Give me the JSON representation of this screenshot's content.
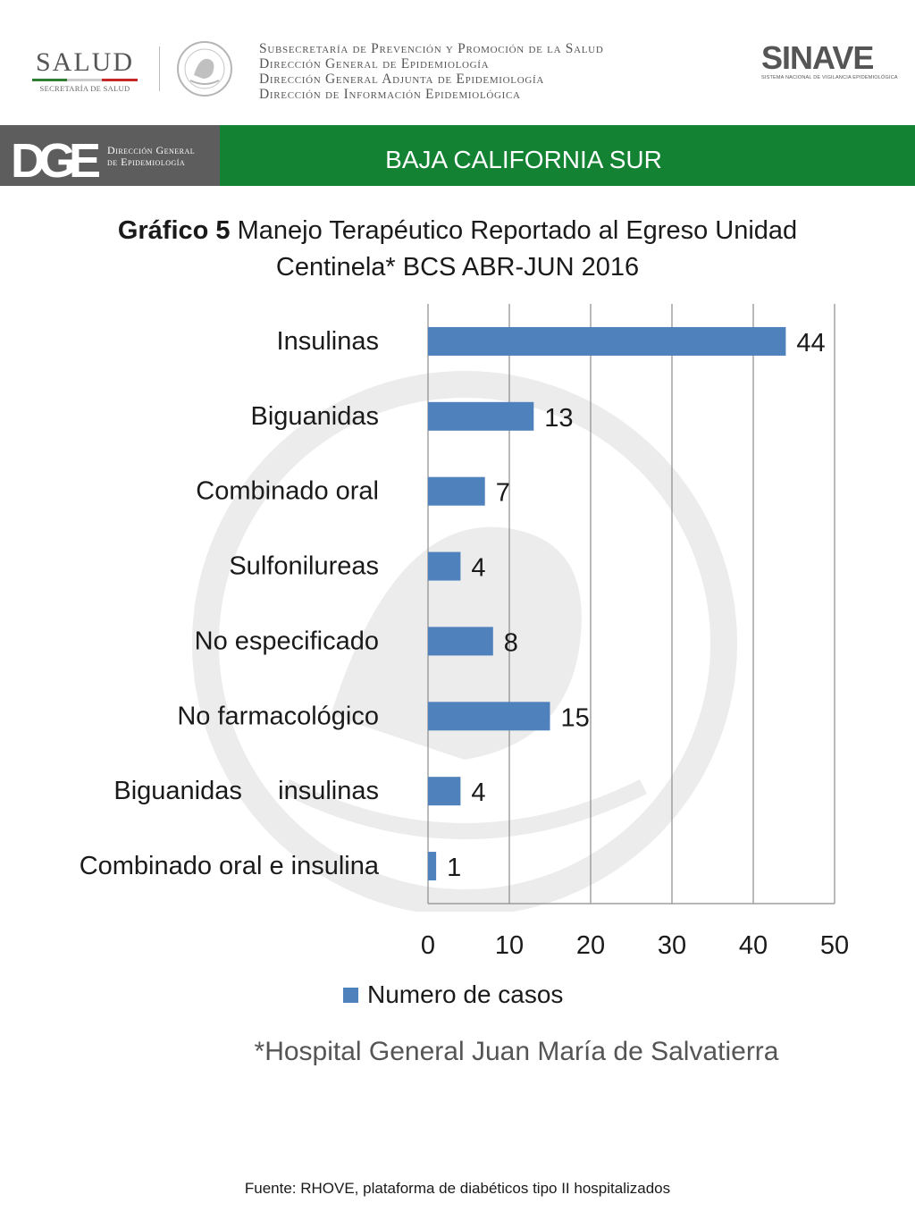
{
  "header": {
    "salud_logo": {
      "word": "SALUD",
      "subtitle": "SECRETARÍA DE SALUD"
    },
    "agency_lines": [
      "Subsecretaría de Prevención y Promoción de la Salud",
      "Dirección General de Epidemiología",
      "Dirección General Adjunta de Epidemiología",
      "Dirección de Información Epidemiológica"
    ],
    "sinave_logo": {
      "word": "SINAVE",
      "subtitle": "SISTEMA NACIONAL DE VIGILANCIA EPIDEMIOLÓGICA"
    }
  },
  "banner": {
    "dge_logo_letters": "DGE",
    "dge_text_line1": "Dirección General",
    "dge_text_line2": "de Epidemiología",
    "title": "BAJA CALIFORNIA SUR",
    "colors": {
      "grey": "#5d5d5d",
      "green": "#138233"
    }
  },
  "chart_data": {
    "type": "bar",
    "orientation": "horizontal",
    "title_bold": "Gráfico 5",
    "title_rest": "Manejo Terapéutico Reportado al Egreso Unidad",
    "title_line2": "Centinela* BCS ABR-JUN 2016",
    "categories": [
      "Insulinas",
      "Biguanidas",
      "Combinado oral",
      "Sulfonilureas",
      "No especificado",
      "No farmacológico",
      "Biguanidas     insulinas",
      "Combinado oral e insulina"
    ],
    "series": [
      {
        "name": "Numero de casos",
        "values": [
          44,
          13,
          7,
          4,
          8,
          15,
          4,
          1
        ],
        "color": "#4f81bd"
      }
    ],
    "xlim": [
      0,
      50
    ],
    "xticks": [
      0,
      10,
      20,
      30,
      40,
      50
    ],
    "grid": true,
    "data_labels": true,
    "legend_position": "bottom"
  },
  "footnote": "*Hospital General Juan María de Salvatierra",
  "source": "Fuente: RHOVE, plataforma de diabéticos tipo II hospitalizados"
}
